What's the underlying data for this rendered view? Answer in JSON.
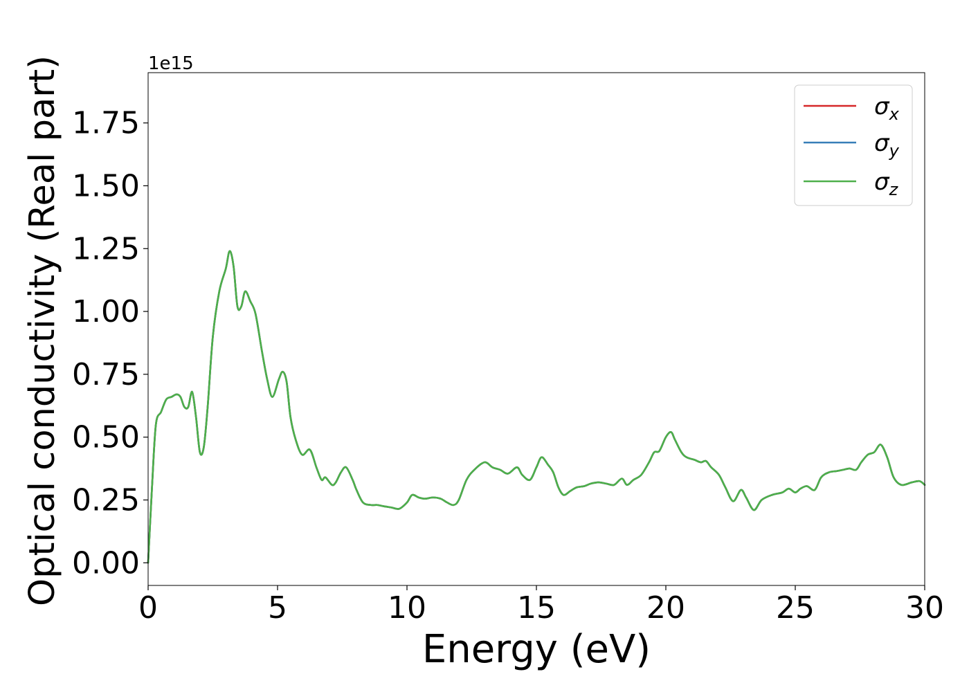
{
  "chart_data": {
    "type": "line",
    "xlabel": "Energy (eV)",
    "ylabel": "Optical conductivity (Real part)",
    "y_multiplier_label": "1e15",
    "xlim": [
      0,
      30
    ],
    "ylim": [
      -0.09,
      1.95
    ],
    "x_ticks": [
      0,
      5,
      10,
      15,
      20,
      25,
      30
    ],
    "x_tick_labels": [
      "0",
      "5",
      "10",
      "15",
      "20",
      "25",
      "30"
    ],
    "y_ticks": [
      0.0,
      0.25,
      0.5,
      0.75,
      1.0,
      1.25,
      1.5,
      1.75
    ],
    "y_tick_labels": [
      "0.00",
      "0.25",
      "0.50",
      "0.75",
      "1.00",
      "1.25",
      "1.50",
      "1.75"
    ],
    "grid": false,
    "legend_position": "top-right",
    "x": [
      0,
      0.15,
      0.3,
      0.5,
      0.7,
      0.9,
      1.1,
      1.25,
      1.4,
      1.55,
      1.7,
      1.85,
      2.0,
      2.15,
      2.3,
      2.5,
      2.75,
      3.0,
      3.15,
      3.3,
      3.45,
      3.6,
      3.75,
      3.95,
      4.15,
      4.4,
      4.6,
      4.8,
      5.05,
      5.2,
      5.35,
      5.5,
      5.7,
      5.95,
      6.25,
      6.5,
      6.7,
      6.85,
      7.1,
      7.25,
      7.45,
      7.65,
      7.9,
      8.05,
      8.3,
      8.6,
      8.85,
      9.1,
      9.4,
      9.7,
      10.0,
      10.2,
      10.45,
      10.7,
      11.0,
      11.3,
      11.55,
      11.8,
      12.0,
      12.3,
      12.6,
      13.0,
      13.3,
      13.6,
      13.9,
      14.25,
      14.45,
      14.75,
      15.0,
      15.2,
      15.45,
      15.65,
      15.85,
      16.05,
      16.3,
      16.55,
      16.85,
      17.1,
      17.4,
      17.7,
      18.0,
      18.3,
      18.5,
      18.75,
      19.05,
      19.35,
      19.55,
      19.75,
      20.0,
      20.2,
      20.35,
      20.6,
      20.8,
      21.1,
      21.35,
      21.55,
      21.75,
      22.05,
      22.3,
      22.6,
      22.9,
      23.1,
      23.4,
      23.7,
      24.1,
      24.5,
      24.75,
      25.0,
      25.2,
      25.45,
      25.75,
      26.0,
      26.3,
      26.6,
      26.85,
      27.1,
      27.35,
      27.55,
      27.8,
      28.05,
      28.3,
      28.55,
      28.8,
      29.1,
      29.5,
      29.8,
      30.0
    ],
    "series": [
      {
        "name": "σx",
        "color": "#d62728",
        "values": [
          0.0,
          0.3,
          0.55,
          0.6,
          0.65,
          0.66,
          0.67,
          0.66,
          0.62,
          0.62,
          0.68,
          0.58,
          0.44,
          0.46,
          0.62,
          0.9,
          1.08,
          1.17,
          1.24,
          1.18,
          1.02,
          1.02,
          1.08,
          1.04,
          0.99,
          0.84,
          0.73,
          0.66,
          0.73,
          0.76,
          0.72,
          0.58,
          0.49,
          0.43,
          0.45,
          0.38,
          0.33,
          0.34,
          0.31,
          0.32,
          0.36,
          0.38,
          0.33,
          0.29,
          0.24,
          0.23,
          0.23,
          0.225,
          0.22,
          0.215,
          0.24,
          0.27,
          0.26,
          0.255,
          0.26,
          0.255,
          0.24,
          0.23,
          0.25,
          0.33,
          0.37,
          0.4,
          0.38,
          0.37,
          0.355,
          0.38,
          0.35,
          0.33,
          0.38,
          0.42,
          0.39,
          0.36,
          0.3,
          0.27,
          0.285,
          0.3,
          0.305,
          0.315,
          0.32,
          0.315,
          0.31,
          0.335,
          0.31,
          0.33,
          0.35,
          0.4,
          0.44,
          0.445,
          0.5,
          0.52,
          0.49,
          0.44,
          0.42,
          0.41,
          0.4,
          0.405,
          0.38,
          0.35,
          0.3,
          0.245,
          0.29,
          0.26,
          0.21,
          0.25,
          0.27,
          0.28,
          0.295,
          0.28,
          0.295,
          0.305,
          0.29,
          0.34,
          0.36,
          0.365,
          0.37,
          0.375,
          0.37,
          0.4,
          0.43,
          0.44,
          0.47,
          0.42,
          0.34,
          0.31,
          0.32,
          0.325,
          0.31
        ]
      },
      {
        "name": "σy",
        "color": "#377eb8",
        "values": [
          0.0,
          0.3,
          0.55,
          0.6,
          0.65,
          0.66,
          0.67,
          0.66,
          0.62,
          0.62,
          0.68,
          0.58,
          0.44,
          0.46,
          0.62,
          0.9,
          1.08,
          1.17,
          1.24,
          1.18,
          1.02,
          1.02,
          1.08,
          1.04,
          0.99,
          0.84,
          0.73,
          0.66,
          0.73,
          0.76,
          0.72,
          0.58,
          0.49,
          0.43,
          0.45,
          0.38,
          0.33,
          0.34,
          0.31,
          0.32,
          0.36,
          0.38,
          0.33,
          0.29,
          0.24,
          0.23,
          0.23,
          0.225,
          0.22,
          0.215,
          0.24,
          0.27,
          0.26,
          0.255,
          0.26,
          0.255,
          0.24,
          0.23,
          0.25,
          0.33,
          0.37,
          0.4,
          0.38,
          0.37,
          0.355,
          0.38,
          0.35,
          0.33,
          0.38,
          0.42,
          0.39,
          0.36,
          0.3,
          0.27,
          0.285,
          0.3,
          0.305,
          0.315,
          0.32,
          0.315,
          0.31,
          0.335,
          0.31,
          0.33,
          0.35,
          0.4,
          0.44,
          0.445,
          0.5,
          0.52,
          0.49,
          0.44,
          0.42,
          0.41,
          0.4,
          0.405,
          0.38,
          0.35,
          0.3,
          0.245,
          0.29,
          0.26,
          0.21,
          0.25,
          0.27,
          0.28,
          0.295,
          0.28,
          0.295,
          0.305,
          0.29,
          0.34,
          0.36,
          0.365,
          0.37,
          0.375,
          0.37,
          0.4,
          0.43,
          0.44,
          0.47,
          0.42,
          0.34,
          0.31,
          0.32,
          0.325,
          0.31
        ]
      },
      {
        "name": "σz",
        "color": "#4daf4a",
        "values": [
          0.0,
          0.3,
          0.55,
          0.6,
          0.65,
          0.66,
          0.67,
          0.66,
          0.62,
          0.62,
          0.68,
          0.58,
          0.44,
          0.46,
          0.62,
          0.9,
          1.08,
          1.17,
          1.24,
          1.18,
          1.02,
          1.02,
          1.08,
          1.04,
          0.99,
          0.84,
          0.73,
          0.66,
          0.73,
          0.76,
          0.72,
          0.58,
          0.49,
          0.43,
          0.45,
          0.38,
          0.33,
          0.34,
          0.31,
          0.32,
          0.36,
          0.38,
          0.33,
          0.29,
          0.24,
          0.23,
          0.23,
          0.225,
          0.22,
          0.215,
          0.24,
          0.27,
          0.26,
          0.255,
          0.26,
          0.255,
          0.24,
          0.23,
          0.25,
          0.33,
          0.37,
          0.4,
          0.38,
          0.37,
          0.355,
          0.38,
          0.35,
          0.33,
          0.38,
          0.42,
          0.39,
          0.36,
          0.3,
          0.27,
          0.285,
          0.3,
          0.305,
          0.315,
          0.32,
          0.315,
          0.31,
          0.335,
          0.31,
          0.33,
          0.35,
          0.4,
          0.44,
          0.445,
          0.5,
          0.52,
          0.49,
          0.44,
          0.42,
          0.41,
          0.4,
          0.405,
          0.38,
          0.35,
          0.3,
          0.245,
          0.29,
          0.26,
          0.21,
          0.25,
          0.27,
          0.28,
          0.295,
          0.28,
          0.295,
          0.305,
          0.29,
          0.34,
          0.36,
          0.365,
          0.37,
          0.375,
          0.37,
          0.4,
          0.43,
          0.44,
          0.47,
          0.42,
          0.34,
          0.31,
          0.32,
          0.325,
          0.31
        ]
      }
    ]
  },
  "legend": {
    "entries": [
      {
        "symbol": "σ",
        "subscript": "x"
      },
      {
        "symbol": "σ",
        "subscript": "y"
      },
      {
        "symbol": "σ",
        "subscript": "z"
      }
    ]
  }
}
